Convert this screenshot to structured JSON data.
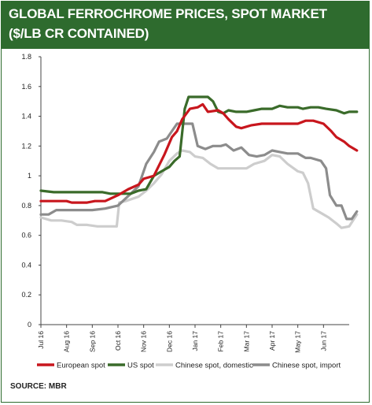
{
  "header": {
    "title_line1": "GLOBAL FERROCHROME PRICES, SPOT MARKET",
    "title_line2": "($/LB CR CONTAINED)"
  },
  "source": "SOURCE: MBR",
  "colors": {
    "header_bg": "#2e6b2e",
    "european": "#c8161d",
    "us": "#3a6b2a",
    "chinese_domestic": "#cdcdcd",
    "chinese_import": "#8c8c8c"
  },
  "chart_data": {
    "type": "line",
    "title": "GLOBAL FERROCHROME PRICES, SPOT MARKET ($/LB CR CONTAINED)",
    "y_ticks": [
      "0",
      "0.2",
      "0.4",
      "0.6",
      "0.8",
      "1",
      "1.2",
      "1.4",
      "1.6",
      "1.8"
    ],
    "ylim": [
      0,
      1.8
    ],
    "x_ticks": [
      "Jul 16",
      "Aug 16",
      "Sep 16",
      "Oct 16",
      "Nov 16",
      "Dec 16",
      "Jan 17",
      "Feb 17",
      "Mar 17",
      "Apr 17",
      "May 17",
      "Jun 17"
    ],
    "x_range_months": [
      0,
      12
    ],
    "grid": false,
    "legend_position": "bottom",
    "series": [
      {
        "name": "European spot",
        "color": "#c8161d",
        "points": [
          [
            0,
            0.83
          ],
          [
            0.6,
            0.83
          ],
          [
            1.0,
            0.83
          ],
          [
            1.2,
            0.82
          ],
          [
            1.8,
            0.82
          ],
          [
            2.1,
            0.83
          ],
          [
            2.5,
            0.83
          ],
          [
            3.0,
            0.87
          ],
          [
            3.4,
            0.91
          ],
          [
            3.8,
            0.94
          ],
          [
            4.0,
            0.98
          ],
          [
            4.4,
            1.0
          ],
          [
            4.8,
            1.14
          ],
          [
            5.1,
            1.26
          ],
          [
            5.3,
            1.3
          ],
          [
            5.5,
            1.38
          ],
          [
            5.8,
            1.45
          ],
          [
            6.1,
            1.46
          ],
          [
            6.3,
            1.48
          ],
          [
            6.5,
            1.43
          ],
          [
            6.9,
            1.44
          ],
          [
            7.1,
            1.42
          ],
          [
            7.3,
            1.38
          ],
          [
            7.6,
            1.33
          ],
          [
            7.8,
            1.32
          ],
          [
            8.2,
            1.34
          ],
          [
            8.6,
            1.35
          ],
          [
            9.0,
            1.35
          ],
          [
            9.5,
            1.35
          ],
          [
            10.0,
            1.35
          ],
          [
            10.3,
            1.37
          ],
          [
            10.6,
            1.37
          ],
          [
            11.0,
            1.35
          ],
          [
            11.3,
            1.3
          ],
          [
            11.5,
            1.26
          ],
          [
            11.8,
            1.23
          ],
          [
            12.0,
            1.2
          ],
          [
            12.3,
            1.17
          ]
        ]
      },
      {
        "name": "US spot",
        "color": "#3a6b2a",
        "points": [
          [
            0,
            0.9
          ],
          [
            0.5,
            0.89
          ],
          [
            1.0,
            0.89
          ],
          [
            1.5,
            0.89
          ],
          [
            2.0,
            0.89
          ],
          [
            2.4,
            0.89
          ],
          [
            2.7,
            0.88
          ],
          [
            3.0,
            0.88
          ],
          [
            3.5,
            0.88
          ],
          [
            3.8,
            0.9
          ],
          [
            4.1,
            0.91
          ],
          [
            4.4,
            1.0
          ],
          [
            4.7,
            1.03
          ],
          [
            5.0,
            1.06
          ],
          [
            5.2,
            1.1
          ],
          [
            5.4,
            1.13
          ],
          [
            5.6,
            1.45
          ],
          [
            5.75,
            1.53
          ],
          [
            6.5,
            1.53
          ],
          [
            6.7,
            1.5
          ],
          [
            6.9,
            1.43
          ],
          [
            7.1,
            1.42
          ],
          [
            7.3,
            1.44
          ],
          [
            7.6,
            1.43
          ],
          [
            8.0,
            1.43
          ],
          [
            8.3,
            1.44
          ],
          [
            8.6,
            1.45
          ],
          [
            9.0,
            1.45
          ],
          [
            9.3,
            1.47
          ],
          [
            9.6,
            1.46
          ],
          [
            10.0,
            1.46
          ],
          [
            10.2,
            1.45
          ],
          [
            10.5,
            1.46
          ],
          [
            10.8,
            1.46
          ],
          [
            11.1,
            1.45
          ],
          [
            11.5,
            1.44
          ],
          [
            11.8,
            1.42
          ],
          [
            12.0,
            1.43
          ],
          [
            12.3,
            1.43
          ]
        ]
      },
      {
        "name": "Chinese spot, domestic",
        "color": "#cdcdcd",
        "points": [
          [
            0,
            0.72
          ],
          [
            0.4,
            0.7
          ],
          [
            0.8,
            0.7
          ],
          [
            1.2,
            0.69
          ],
          [
            1.4,
            0.67
          ],
          [
            1.8,
            0.67
          ],
          [
            2.2,
            0.66
          ],
          [
            2.8,
            0.66
          ],
          [
            2.95,
            0.66
          ],
          [
            3.05,
            0.82
          ],
          [
            3.3,
            0.83
          ],
          [
            3.8,
            0.86
          ],
          [
            4.1,
            0.9
          ],
          [
            4.4,
            0.95
          ],
          [
            4.7,
            1.01
          ],
          [
            5.0,
            1.1
          ],
          [
            5.3,
            1.15
          ],
          [
            5.5,
            1.17
          ],
          [
            5.8,
            1.16
          ],
          [
            6.0,
            1.13
          ],
          [
            6.3,
            1.12
          ],
          [
            6.6,
            1.08
          ],
          [
            6.9,
            1.05
          ],
          [
            7.3,
            1.05
          ],
          [
            7.7,
            1.05
          ],
          [
            8.0,
            1.05
          ],
          [
            8.3,
            1.08
          ],
          [
            8.7,
            1.1
          ],
          [
            9.0,
            1.14
          ],
          [
            9.3,
            1.13
          ],
          [
            9.6,
            1.08
          ],
          [
            10.0,
            1.03
          ],
          [
            10.2,
            1.02
          ],
          [
            10.4,
            0.95
          ],
          [
            10.6,
            0.78
          ],
          [
            10.9,
            0.75
          ],
          [
            11.2,
            0.72
          ],
          [
            11.5,
            0.68
          ],
          [
            11.7,
            0.65
          ],
          [
            12.0,
            0.66
          ],
          [
            12.3,
            0.74
          ]
        ]
      },
      {
        "name": "Chinese spot, import",
        "color": "#8c8c8c",
        "points": [
          [
            0,
            0.74
          ],
          [
            0.3,
            0.74
          ],
          [
            0.6,
            0.77
          ],
          [
            1.0,
            0.77
          ],
          [
            1.5,
            0.77
          ],
          [
            2.0,
            0.77
          ],
          [
            2.5,
            0.78
          ],
          [
            3.0,
            0.8
          ],
          [
            3.5,
            0.88
          ],
          [
            3.8,
            0.93
          ],
          [
            4.1,
            1.08
          ],
          [
            4.4,
            1.16
          ],
          [
            4.6,
            1.23
          ],
          [
            4.9,
            1.25
          ],
          [
            5.1,
            1.3
          ],
          [
            5.3,
            1.35
          ],
          [
            5.9,
            1.35
          ],
          [
            6.1,
            1.2
          ],
          [
            6.4,
            1.18
          ],
          [
            6.7,
            1.2
          ],
          [
            7.0,
            1.2
          ],
          [
            7.2,
            1.21
          ],
          [
            7.5,
            1.17
          ],
          [
            7.8,
            1.19
          ],
          [
            8.1,
            1.14
          ],
          [
            8.4,
            1.13
          ],
          [
            8.7,
            1.14
          ],
          [
            9.0,
            1.17
          ],
          [
            9.3,
            1.16
          ],
          [
            9.6,
            1.15
          ],
          [
            10.0,
            1.15
          ],
          [
            10.3,
            1.12
          ],
          [
            10.5,
            1.12
          ],
          [
            10.9,
            1.1
          ],
          [
            11.1,
            1.05
          ],
          [
            11.25,
            0.87
          ],
          [
            11.5,
            0.8
          ],
          [
            11.7,
            0.8
          ],
          [
            11.9,
            0.71
          ],
          [
            12.1,
            0.71
          ],
          [
            12.3,
            0.76
          ]
        ]
      }
    ]
  }
}
